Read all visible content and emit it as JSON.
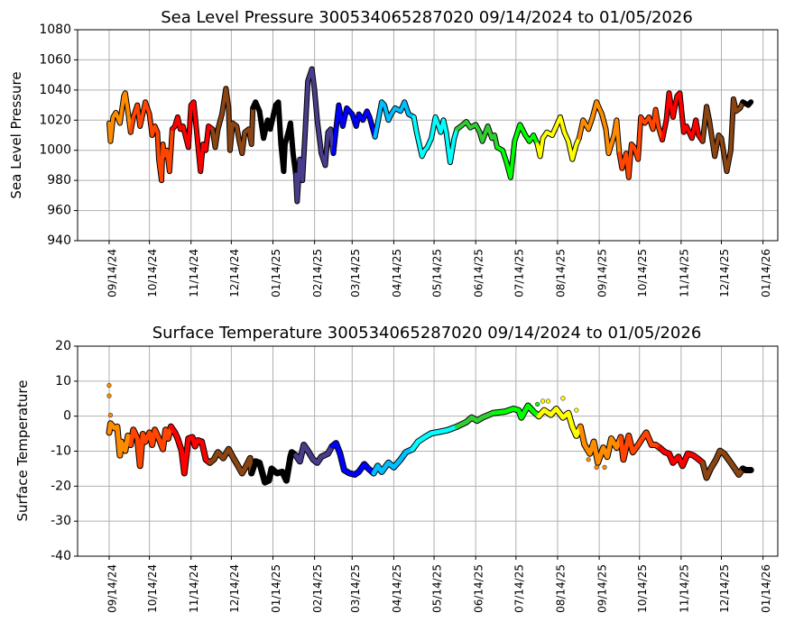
{
  "chart_data": [
    {
      "type": "line",
      "title": "Sea Level Pressure 300534065287020  09/14/2024 to 01/05/2026",
      "xlabel": "",
      "ylabel": "Sea Level Pressure",
      "ylim": [
        940,
        1080
      ],
      "yticks": [
        940,
        960,
        980,
        1000,
        1020,
        1040,
        1060,
        1080
      ],
      "x_unit": "days since 09/14/2024",
      "xlim": [
        -23.5,
        498
      ],
      "grid": true,
      "points": [
        [
          0,
          1018
        ],
        [
          1,
          1006
        ],
        [
          3,
          1022
        ],
        [
          5,
          1025
        ],
        [
          8,
          1018
        ],
        [
          11,
          1036
        ],
        [
          12,
          1038
        ],
        [
          14,
          1026
        ],
        [
          16,
          1012
        ],
        [
          18,
          1022
        ],
        [
          21,
          1030
        ],
        [
          23,
          1016
        ],
        [
          25,
          1024
        ],
        [
          27,
          1032
        ],
        [
          30,
          1024
        ],
        [
          32,
          1010
        ],
        [
          34,
          1016
        ],
        [
          36,
          1012
        ],
        [
          37,
          994
        ],
        [
          39,
          980
        ],
        [
          40,
          1004
        ],
        [
          41,
          996
        ],
        [
          43,
          1000
        ],
        [
          45,
          986
        ],
        [
          47,
          1014
        ],
        [
          49,
          1016
        ],
        [
          51,
          1022
        ],
        [
          53,
          1014
        ],
        [
          55,
          1016
        ],
        [
          59,
          1002
        ],
        [
          61,
          1030
        ],
        [
          63,
          1032
        ],
        [
          65,
          1014
        ],
        [
          68,
          986
        ],
        [
          70,
          1004
        ],
        [
          72,
          1000
        ],
        [
          74,
          1016
        ],
        [
          77,
          1014
        ],
        [
          79,
          1002
        ],
        [
          81,
          1014
        ],
        [
          84,
          1024
        ],
        [
          87,
          1041
        ],
        [
          89,
          1028
        ],
        [
          90,
          1000
        ],
        [
          92,
          1018
        ],
        [
          95,
          1016
        ],
        [
          97,
          1006
        ],
        [
          99,
          998
        ],
        [
          101,
          1012
        ],
        [
          104,
          1014
        ],
        [
          106,
          1004
        ],
        [
          107,
          1028
        ],
        [
          109,
          1032
        ],
        [
          112,
          1026
        ],
        [
          115,
          1008
        ],
        [
          118,
          1020
        ],
        [
          120,
          1014
        ],
        [
          124,
          1030
        ],
        [
          126,
          1032
        ],
        [
          128,
          1004
        ],
        [
          130,
          986
        ],
        [
          131,
          1004
        ],
        [
          134,
          1014
        ],
        [
          135,
          1018
        ],
        [
          137,
          998
        ],
        [
          139,
          984
        ],
        [
          140,
          966
        ],
        [
          142,
          994
        ],
        [
          144,
          980
        ],
        [
          146,
          1012
        ],
        [
          148,
          1046
        ],
        [
          151,
          1054
        ],
        [
          153,
          1040
        ],
        [
          155,
          1020
        ],
        [
          158,
          998
        ],
        [
          161,
          990
        ],
        [
          163,
          1012
        ],
        [
          165,
          1014
        ],
        [
          166,
          1004
        ],
        [
          167,
          998
        ],
        [
          169,
          1014
        ],
        [
          171,
          1030
        ],
        [
          174,
          1016
        ],
        [
          177,
          1028
        ],
        [
          181,
          1024
        ],
        [
          184,
          1016
        ],
        [
          186,
          1024
        ],
        [
          189,
          1020
        ],
        [
          192,
          1026
        ],
        [
          194,
          1022
        ],
        [
          198,
          1009
        ],
        [
          200,
          1018
        ],
        [
          203,
          1032
        ],
        [
          205,
          1030
        ],
        [
          208,
          1020
        ],
        [
          210,
          1024
        ],
        [
          213,
          1028
        ],
        [
          217,
          1026
        ],
        [
          220,
          1032
        ],
        [
          223,
          1024
        ],
        [
          227,
          1022
        ],
        [
          229,
          1012
        ],
        [
          231,
          1004
        ],
        [
          233,
          996
        ],
        [
          235,
          1000
        ],
        [
          237,
          1002
        ],
        [
          240,
          1008
        ],
        [
          243,
          1022
        ],
        [
          247,
          1012
        ],
        [
          249,
          1020
        ],
        [
          251,
          1012
        ],
        [
          254,
          992
        ],
        [
          257,
          1008
        ],
        [
          259,
          1014
        ],
        [
          262,
          1016
        ],
        [
          266,
          1019
        ],
        [
          269,
          1015
        ],
        [
          273,
          1017
        ],
        [
          276,
          1012
        ],
        [
          278,
          1006
        ],
        [
          282,
          1016
        ],
        [
          285,
          1008
        ],
        [
          287,
          1010
        ],
        [
          289,
          1002
        ],
        [
          293,
          1000
        ],
        [
          296,
          992
        ],
        [
          299,
          982
        ],
        [
          302,
          1006
        ],
        [
          306,
          1017
        ],
        [
          310,
          1010
        ],
        [
          313,
          1006
        ],
        [
          316,
          1010
        ],
        [
          319,
          1004
        ],
        [
          321,
          996
        ],
        [
          323,
          1008
        ],
        [
          326,
          1012
        ],
        [
          330,
          1010
        ],
        [
          333,
          1016
        ],
        [
          336,
          1022
        ],
        [
          339,
          1012
        ],
        [
          342,
          1006
        ],
        [
          345,
          994
        ],
        [
          348,
          1004
        ],
        [
          350,
          1008
        ],
        [
          353,
          1020
        ],
        [
          357,
          1014
        ],
        [
          360,
          1022
        ],
        [
          363,
          1032
        ],
        [
          367,
          1024
        ],
        [
          370,
          1014
        ],
        [
          372,
          998
        ],
        [
          376,
          1010
        ],
        [
          378,
          1020
        ],
        [
          380,
          998
        ],
        [
          382,
          988
        ],
        [
          385,
          998
        ],
        [
          387,
          982
        ],
        [
          389,
          1004
        ],
        [
          391,
          1002
        ],
        [
          394,
          994
        ],
        [
          396,
          1022
        ],
        [
          399,
          1018
        ],
        [
          402,
          1022
        ],
        [
          405,
          1014
        ],
        [
          407,
          1027
        ],
        [
          409,
          1016
        ],
        [
          412,
          1007
        ],
        [
          415,
          1020
        ],
        [
          417,
          1038
        ],
        [
          420,
          1022
        ],
        [
          423,
          1036
        ],
        [
          425,
          1038
        ],
        [
          428,
          1012
        ],
        [
          430,
          1016
        ],
        [
          434,
          1008
        ],
        [
          437,
          1020
        ],
        [
          439,
          1010
        ],
        [
          442,
          1006
        ],
        [
          445,
          1029
        ],
        [
          447,
          1020
        ],
        [
          451,
          996
        ],
        [
          454,
          1010
        ],
        [
          456,
          1008
        ],
        [
          460,
          986
        ],
        [
          463,
          1000
        ],
        [
          465,
          1034
        ],
        [
          467,
          1026
        ],
        [
          470,
          1028
        ],
        [
          472,
          1032
        ],
        [
          476,
          1030
        ],
        [
          478,
          1032
        ]
      ],
      "outliers": []
    },
    {
      "type": "line",
      "title": "Surface Temperature 300534065287020  09/14/2024 to 01/05/2026",
      "xlabel": "",
      "ylabel": "Surface Temperature",
      "ylim": [
        -40,
        20
      ],
      "yticks": [
        -40,
        -30,
        -20,
        -10,
        0,
        10,
        20
      ],
      "x_unit": "days since 09/14/2024",
      "xlim": [
        -23.5,
        498
      ],
      "grid": true,
      "points": [
        [
          0,
          -4.7
        ],
        [
          1,
          -2.1
        ],
        [
          4,
          -3.4
        ],
        [
          6,
          -3.0
        ],
        [
          8,
          -11.2
        ],
        [
          9,
          -7.3
        ],
        [
          12,
          -9.9
        ],
        [
          14,
          -5.6
        ],
        [
          16,
          -8.2
        ],
        [
          18,
          -3.9
        ],
        [
          21,
          -6.4
        ],
        [
          23,
          -14.2
        ],
        [
          25,
          -5.1
        ],
        [
          27,
          -7.3
        ],
        [
          30,
          -4.7
        ],
        [
          32,
          -8.2
        ],
        [
          34,
          -3.9
        ],
        [
          37,
          -6.4
        ],
        [
          40,
          -9.4
        ],
        [
          42,
          -3.9
        ],
        [
          44,
          -6.4
        ],
        [
          46,
          -3.0
        ],
        [
          49,
          -4.7
        ],
        [
          51,
          -6.4
        ],
        [
          54,
          -9.9
        ],
        [
          56,
          -16.3
        ],
        [
          59,
          -6.4
        ],
        [
          62,
          -6.0
        ],
        [
          64,
          -8.6
        ],
        [
          66,
          -6.9
        ],
        [
          69,
          -7.3
        ],
        [
          72,
          -12.4
        ],
        [
          75,
          -13.3
        ],
        [
          78,
          -12.4
        ],
        [
          81,
          -10.3
        ],
        [
          85,
          -12.0
        ],
        [
          89,
          -9.4
        ],
        [
          92,
          -11.6
        ],
        [
          96,
          -14.2
        ],
        [
          99,
          -16.3
        ],
        [
          101,
          -15.0
        ],
        [
          105,
          -12.0
        ],
        [
          106,
          -16.3
        ],
        [
          109,
          -12.9
        ],
        [
          112,
          -13.3
        ],
        [
          116,
          -18.9
        ],
        [
          119,
          -18.4
        ],
        [
          121,
          -15.0
        ],
        [
          125,
          -16.3
        ],
        [
          129,
          -15.9
        ],
        [
          132,
          -18.4
        ],
        [
          135,
          -11.6
        ],
        [
          136,
          -10.3
        ],
        [
          139,
          -11.2
        ],
        [
          142,
          -12.9
        ],
        [
          145,
          -8.2
        ],
        [
          148,
          -9.9
        ],
        [
          152,
          -12.4
        ],
        [
          155,
          -13.3
        ],
        [
          158,
          -11.6
        ],
        [
          163,
          -10.7
        ],
        [
          166,
          -8.6
        ],
        [
          169,
          -7.7
        ],
        [
          172,
          -10.7
        ],
        [
          175,
          -15.4
        ],
        [
          179,
          -16.3
        ],
        [
          183,
          -16.7
        ],
        [
          186,
          -15.9
        ],
        [
          190,
          -13.7
        ],
        [
          193,
          -15.0
        ],
        [
          197,
          -16.3
        ],
        [
          200,
          -14.2
        ],
        [
          203,
          -15.9
        ],
        [
          208,
          -13.3
        ],
        [
          212,
          -14.6
        ],
        [
          217,
          -12.4
        ],
        [
          221,
          -10.3
        ],
        [
          226,
          -9.4
        ],
        [
          230,
          -7.3
        ],
        [
          235,
          -6.0
        ],
        [
          240,
          -4.9
        ],
        [
          246,
          -4.5
        ],
        [
          252,
          -4.0
        ],
        [
          259,
          -3.0
        ],
        [
          266,
          -1.7
        ],
        [
          270,
          -0.4
        ],
        [
          274,
          -1.3
        ],
        [
          278,
          -0.4
        ],
        [
          286,
          0.9
        ],
        [
          295,
          1.3
        ],
        [
          301,
          2.1
        ],
        [
          305,
          1.7
        ],
        [
          307,
          -0.4
        ],
        [
          312,
          3.0
        ],
        [
          316,
          1.3
        ],
        [
          320,
          0.0
        ],
        [
          324,
          1.7
        ],
        [
          329,
          0.4
        ],
        [
          333,
          2.1
        ],
        [
          338,
          -0.4
        ],
        [
          342,
          0.9
        ],
        [
          345,
          -3.0
        ],
        [
          348,
          -5.6
        ],
        [
          351,
          -3.0
        ],
        [
          354,
          -8.1
        ],
        [
          358,
          -10.7
        ],
        [
          361,
          -7.3
        ],
        [
          364,
          -13.3
        ],
        [
          368,
          -9.0
        ],
        [
          371,
          -11.6
        ],
        [
          374,
          -6.4
        ],
        [
          378,
          -9.0
        ],
        [
          381,
          -6.0
        ],
        [
          383,
          -12.4
        ],
        [
          387,
          -5.6
        ],
        [
          390,
          -10.3
        ],
        [
          394,
          -8.2
        ],
        [
          397,
          -6.4
        ],
        [
          400,
          -4.7
        ],
        [
          404,
          -8.2
        ],
        [
          407,
          -8.2
        ],
        [
          410,
          -9.0
        ],
        [
          414,
          -10.3
        ],
        [
          417,
          -10.7
        ],
        [
          420,
          -13.3
        ],
        [
          424,
          -11.6
        ],
        [
          427,
          -14.2
        ],
        [
          431,
          -10.7
        ],
        [
          435,
          -11.2
        ],
        [
          438,
          -12.0
        ],
        [
          442,
          -13.3
        ],
        [
          445,
          -17.6
        ],
        [
          448,
          -15.0
        ],
        [
          452,
          -12.4
        ],
        [
          455,
          -9.9
        ],
        [
          458,
          -10.7
        ],
        [
          463,
          -13.3
        ],
        [
          466,
          -15.0
        ],
        [
          469,
          -16.7
        ],
        [
          472,
          -15.0
        ],
        [
          474,
          -15.4
        ],
        [
          478,
          -15.4
        ]
      ],
      "outliers": [
        [
          0,
          8.8
        ],
        [
          0,
          5.8
        ],
        [
          1,
          0.3
        ],
        [
          319,
          3.4
        ],
        [
          323,
          4.3
        ],
        [
          327,
          4.3
        ],
        [
          338,
          5.1
        ],
        [
          348,
          1.7
        ],
        [
          357,
          -12.4
        ],
        [
          363,
          -14.6
        ],
        [
          369,
          -14.6
        ]
      ]
    }
  ],
  "xticks": {
    "days": [
      0,
      30,
      61,
      91,
      122,
      153,
      181,
      212,
      242,
      273,
      303,
      334,
      365,
      395,
      426,
      456,
      487
    ],
    "labels": [
      "09/14/24",
      "10/14/24",
      "11/14/24",
      "12/14/24",
      "01/14/25",
      "02/14/25",
      "03/14/25",
      "04/14/25",
      "05/14/25",
      "06/14/25",
      "07/14/25",
      "08/14/25",
      "09/14/25",
      "10/14/25",
      "11/14/25",
      "12/14/25",
      "01/14/26"
    ]
  },
  "month_colors": {
    "boundaries_days": [
      17,
      48,
      78,
      109,
      140,
      168,
      199,
      229,
      260,
      290,
      321,
      352,
      382,
      413,
      443,
      474
    ],
    "colors": [
      "#ff8c00",
      "#ff4500",
      "#ff0000",
      "#8b4513",
      "#000000",
      "#483d8b",
      "#0000ff",
      "#00bfff",
      "#00ffff",
      "#32cd32",
      "#00ff00",
      "#ffff00",
      "#ff8c00",
      "#ff4500",
      "#ff0000",
      "#8b4513",
      "#000000"
    ]
  }
}
